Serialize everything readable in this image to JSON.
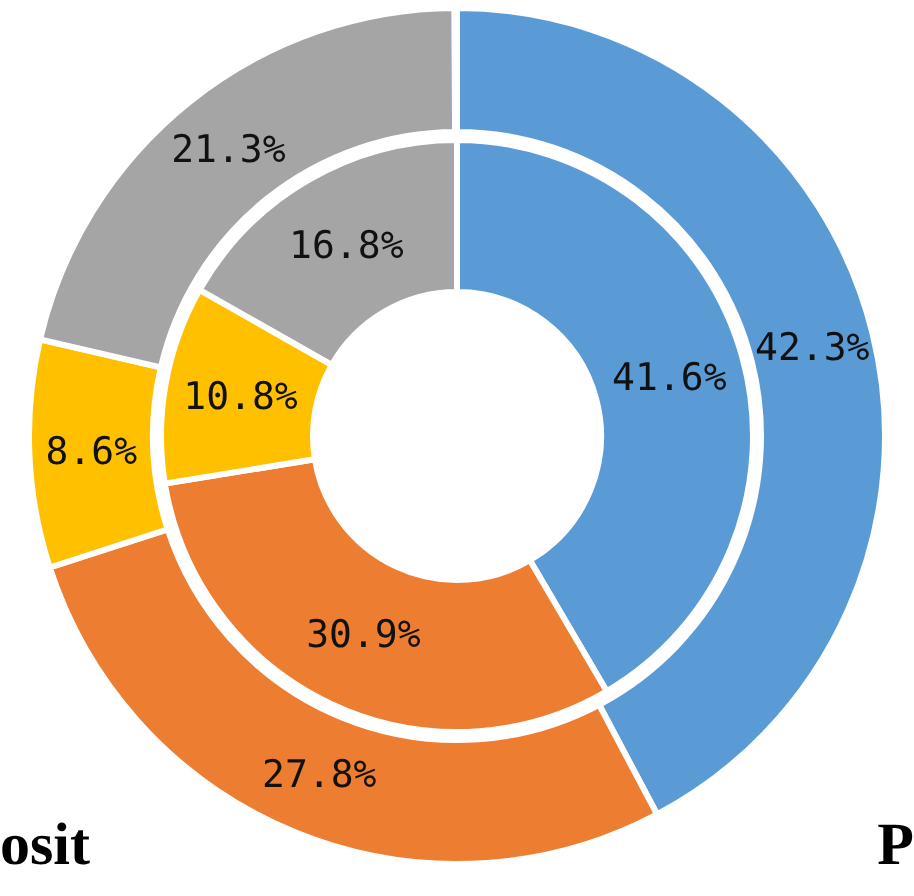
{
  "chart_data": {
    "type": "donut",
    "categories": [
      null,
      null,
      null,
      null
    ],
    "colors": [
      "#5b9bd5",
      "#ed7d31",
      "#ffc000",
      "#a5a5a5"
    ],
    "series": [
      {
        "values": [
          42.3,
          27.8,
          8.6,
          21.3
        ],
        "value_labels": [
          "42.3%",
          "27.8%",
          "8.6%",
          "21.3%"
        ]
      },
      {
        "values": [
          41.6,
          30.9,
          10.8,
          16.8
        ],
        "value_labels": [
          "41.6%",
          "30.9%",
          "10.8%",
          "16.8%"
        ]
      }
    ],
    "annotations": [
      "osit",
      "P"
    ]
  }
}
